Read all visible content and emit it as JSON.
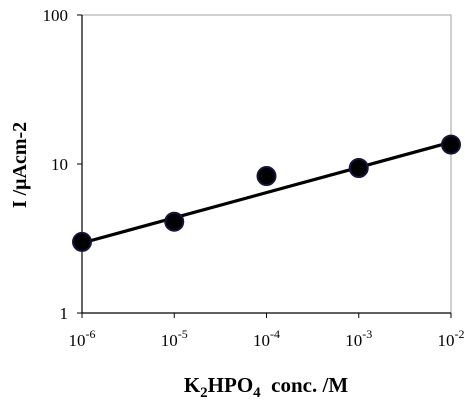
{
  "chart_data": {
    "type": "scatter",
    "title": "",
    "xlabel": {
      "prefix": "K",
      "sub1": "2",
      "mid": "HPO",
      "sub2": "4",
      "suffix": "  conc. /M"
    },
    "ylabel": "I /μAcm-2",
    "x_scale": "log",
    "y_scale": "log",
    "xlim": [
      1e-06,
      0.01
    ],
    "ylim": [
      1,
      100
    ],
    "x_ticks": [
      {
        "base": "10",
        "exp": "-6",
        "value": 1e-06
      },
      {
        "base": "10",
        "exp": "-5",
        "value": 1e-05
      },
      {
        "base": "10",
        "exp": "-4",
        "value": 0.0001
      },
      {
        "base": "10",
        "exp": "-3",
        "value": 0.001
      },
      {
        "base": "10",
        "exp": "-2",
        "value": 0.01
      }
    ],
    "y_ticks": [
      {
        "label": "100",
        "value": 100
      },
      {
        "label": "10",
        "value": 10
      },
      {
        "label": "1",
        "value": 1
      }
    ],
    "grid": false,
    "series": [
      {
        "x": [
          1e-06,
          1e-05,
          0.0001,
          0.001,
          0.01
        ],
        "y": [
          3.0,
          4.1,
          8.3,
          9.4,
          13.5
        ],
        "marker_color": "#14143c"
      }
    ],
    "fit_line": {
      "x": [
        1e-06,
        0.01
      ],
      "y": [
        2.95,
        14.0
      ],
      "color": "#000000"
    }
  }
}
